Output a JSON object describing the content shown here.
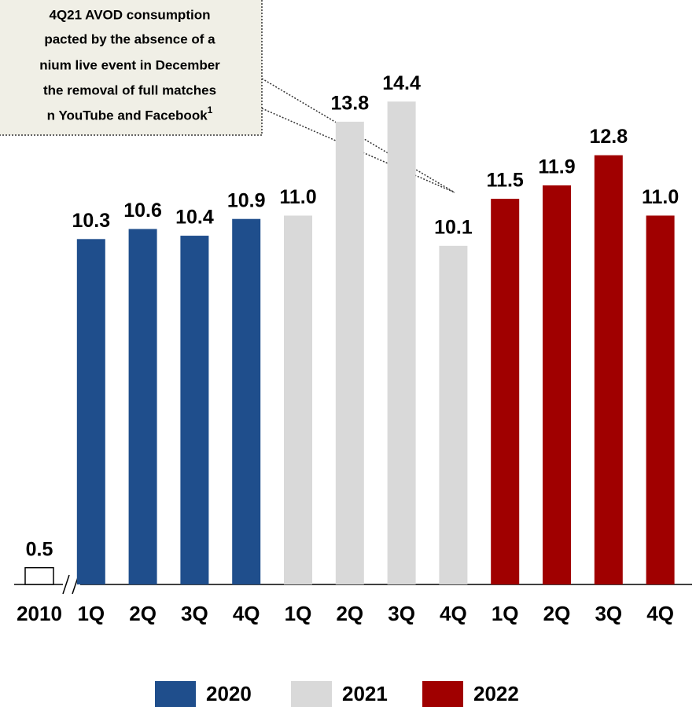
{
  "chart_data": {
    "type": "bar",
    "categories": [
      "2010",
      "1Q",
      "2Q",
      "3Q",
      "4Q",
      "1Q",
      "2Q",
      "3Q",
      "4Q",
      "1Q",
      "2Q",
      "3Q",
      "4Q"
    ],
    "values": [
      0.5,
      10.3,
      10.6,
      10.4,
      10.9,
      11.0,
      13.8,
      14.4,
      10.1,
      11.5,
      11.9,
      12.8,
      11.0
    ],
    "value_labels": [
      "0.5",
      "10.3",
      "10.6",
      "10.4",
      "10.9",
      "11.0",
      "13.8",
      "14.4",
      "10.1",
      "11.5",
      "11.9",
      "12.8",
      "11.0"
    ],
    "colors": [
      "#ffffff",
      "#1f4e8c",
      "#1f4e8c",
      "#1f4e8c",
      "#1f4e8c",
      "#d9d9d9",
      "#d9d9d9",
      "#d9d9d9",
      "#d9d9d9",
      "#a00000",
      "#a00000",
      "#a00000",
      "#a00000"
    ],
    "legend": [
      {
        "label": "2020",
        "color": "#1f4e8c"
      },
      {
        "label": "2021",
        "color": "#d9d9d9"
      },
      {
        "label": "2022",
        "color": "#a00000"
      }
    ],
    "ylim": [
      0,
      16
    ],
    "annotation": {
      "lines": [
        "4Q21 AVOD consumption",
        "pacted by the absence of a",
        "nium live event in December",
        " the removal of full matches",
        "n YouTube and Facebook"
      ],
      "superscript": "1"
    }
  }
}
